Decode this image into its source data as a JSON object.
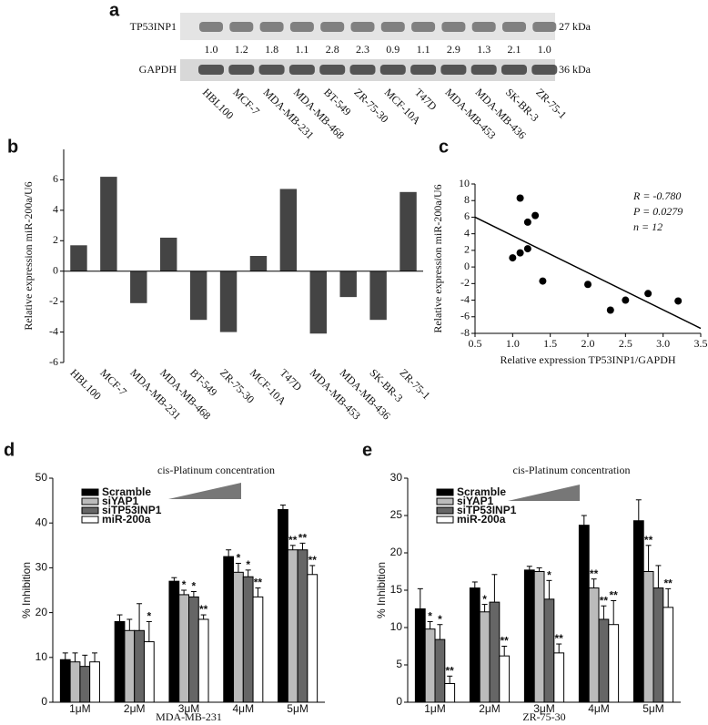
{
  "panel_a": {
    "label": "a",
    "protein": "TP53INP1",
    "kda1": "27 kDa",
    "ratios": [
      "1.0",
      "1.2",
      "1.8",
      "1.1",
      "2.8",
      "2.3",
      "0.9",
      "1.1",
      "2.9",
      "1.3",
      "2.1",
      "1.0"
    ],
    "control": "GAPDH",
    "kda2": "36 kDa",
    "cell_lines": [
      "HBL100",
      "MCF-7",
      "MDA-MB-231",
      "MDA-MB-468",
      "BT-549",
      "ZR-75-30",
      "MCF-10A",
      "T47D",
      "MDA-MB-453",
      "MDA-MB-436",
      "SK-BR-3",
      "ZR-75-1"
    ]
  },
  "chart_data": [
    {
      "type": "bar",
      "label": "b",
      "ylabel": "Relative expression miR-200a/U6",
      "categories": [
        "HBL100",
        "MCF-7",
        "MDA-MB-231",
        "MDA-MB-468",
        "BT-549",
        "ZR-75-30",
        "MCF-10A",
        "T47D",
        "MDA-MB-453",
        "MDA-MB-436",
        "SK-BR-3",
        "ZR-75-1"
      ],
      "values": [
        1.7,
        6.2,
        -2.1,
        2.2,
        -3.2,
        -4.0,
        1.0,
        5.4,
        -4.1,
        -1.7,
        -3.2,
        5.2
      ],
      "color": "#444444",
      "ylim": [
        -6,
        8
      ],
      "yticks": [
        -6,
        -4,
        -2,
        0,
        2,
        4,
        6
      ]
    },
    {
      "type": "scatter",
      "label": "c",
      "xlabel": "Relative expression TP53INP1/GAPDH",
      "ylabel": "Relative expression miR-200a/U6",
      "x": [
        1.0,
        1.1,
        1.1,
        1.2,
        1.2,
        1.3,
        1.4,
        2.0,
        2.3,
        2.5,
        2.8,
        3.2
      ],
      "values": [
        1.1,
        8.3,
        1.7,
        5.4,
        2.2,
        6.2,
        -1.7,
        -2.1,
        -5.2,
        -4.0,
        -3.2,
        -4.1
      ],
      "color": "#000000",
      "fit": {
        "x": [
          0.5,
          3.5
        ],
        "y": [
          6.0,
          -7.4
        ]
      },
      "annotations": [
        "R = -0.780",
        "P = 0.0279",
        "n = 12"
      ],
      "xlim": [
        0.5,
        3.5
      ],
      "xticks": [
        0.5,
        {
          "value": 1,
          "label": "1.0"
        },
        1.5,
        {
          "value": 2,
          "label": "2.0"
        },
        2.5,
        {
          "value": 3,
          "label": "3.0"
        },
        3.5
      ],
      "ylim": [
        -8,
        10
      ],
      "yticks": [
        -8,
        -6,
        -4,
        -2,
        0,
        2,
        4,
        6,
        8,
        10
      ]
    },
    {
      "type": "grouped_bar",
      "label": "d",
      "title": "cis-Platinum concentration",
      "xlabel": "MDA-MB-231",
      "ylabel": "% Inhibition",
      "categories": [
        "1μM",
        "2μM",
        "3μM",
        "4μM",
        "5μM"
      ],
      "ylim": [
        0,
        50
      ],
      "yticks": [
        0,
        10,
        20,
        30,
        40,
        50
      ],
      "series": [
        {
          "name": "Scramble",
          "color": "#000000",
          "values": [
            9.5,
            18,
            27,
            32.5,
            43
          ],
          "errors": [
            1.5,
            1.5,
            0.8,
            1.5,
            1
          ],
          "stars": [
            null,
            null,
            null,
            null,
            null
          ]
        },
        {
          "name": "siYAP1",
          "color": "#bbbbbb",
          "values": [
            9,
            16,
            24,
            29,
            34
          ],
          "errors": [
            2,
            2.5,
            1,
            2,
            1
          ],
          "stars": [
            null,
            null,
            "*",
            "*",
            "**"
          ]
        },
        {
          "name": "siTP53INP1",
          "color": "#666666",
          "values": [
            8,
            16,
            23.5,
            28,
            34
          ],
          "errors": [
            2.5,
            6,
            1.2,
            1.5,
            1.5
          ],
          "stars": [
            null,
            null,
            "*",
            "*",
            "**"
          ]
        },
        {
          "name": "miR-200a",
          "color": "#ffffff",
          "values": [
            9,
            13.5,
            18.5,
            23.5,
            28.5
          ],
          "errors": [
            2,
            4.5,
            1,
            2,
            2
          ],
          "stars": [
            null,
            "*",
            "**",
            "**",
            "**"
          ]
        }
      ]
    },
    {
      "type": "grouped_bar",
      "label": "e",
      "title": "cis-Platinum concentration",
      "xlabel": "ZR-75-30",
      "ylabel": "% Inhibition",
      "categories": [
        "1μM",
        "2μM",
        "3μM",
        "4μM",
        "5μM"
      ],
      "ylim": [
        0,
        30
      ],
      "yticks": [
        0,
        5,
        10,
        15,
        20,
        25,
        30
      ],
      "series": [
        {
          "name": "Scramble",
          "color": "#000000",
          "values": [
            12.5,
            15.3,
            17.7,
            23.7,
            24.3
          ],
          "errors": [
            2.7,
            0.8,
            0.5,
            1.3,
            2.8
          ],
          "stars": [
            null,
            null,
            null,
            null,
            null
          ]
        },
        {
          "name": "siYAP1",
          "color": "#bbbbbb",
          "values": [
            9.8,
            12.1,
            17.5,
            15.3,
            17.5
          ],
          "errors": [
            1,
            1,
            0.5,
            1.2,
            3.5
          ],
          "stars": [
            "*",
            "*",
            null,
            "**",
            "**"
          ]
        },
        {
          "name": "siTP53INP1",
          "color": "#666666",
          "values": [
            8.4,
            13.4,
            13.8,
            11.1,
            15.3
          ],
          "errors": [
            2,
            3.7,
            2.5,
            1.8,
            3
          ],
          "stars": [
            "*",
            null,
            "*",
            "**",
            null
          ]
        },
        {
          "name": "miR-200a",
          "color": "#ffffff",
          "values": [
            2.5,
            6.2,
            6.6,
            10.4,
            12.7
          ],
          "errors": [
            1,
            1.3,
            1.2,
            3.2,
            2.5
          ],
          "stars": [
            "**",
            "**",
            "**",
            "**",
            "**"
          ]
        }
      ]
    }
  ]
}
